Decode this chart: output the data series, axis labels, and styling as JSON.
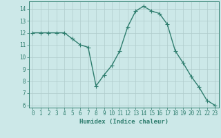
{
  "x": [
    0,
    1,
    2,
    3,
    4,
    5,
    6,
    7,
    8,
    9,
    10,
    11,
    12,
    13,
    14,
    15,
    16,
    17,
    18,
    19,
    20,
    21,
    22,
    23
  ],
  "y": [
    12,
    12,
    12,
    12,
    12,
    11.5,
    11,
    10.8,
    7.6,
    8.5,
    9.3,
    10.5,
    12.5,
    13.8,
    14.2,
    13.8,
    13.6,
    12.7,
    10.5,
    9.5,
    8.4,
    7.5,
    6.4,
    6.0
  ],
  "line_color": "#2e7d6e",
  "marker": "D",
  "marker_size": 2.0,
  "bg_color": "#cce8e8",
  "grid_color": "#b0cccc",
  "xlabel": "Humidex (Indice chaleur)",
  "xlim": [
    -0.5,
    23.5
  ],
  "ylim": [
    5.8,
    14.6
  ],
  "yticks": [
    6,
    7,
    8,
    9,
    10,
    11,
    12,
    13,
    14
  ],
  "xticks": [
    0,
    1,
    2,
    3,
    4,
    5,
    6,
    7,
    8,
    9,
    10,
    11,
    12,
    13,
    14,
    15,
    16,
    17,
    18,
    19,
    20,
    21,
    22,
    23
  ],
  "tick_fontsize": 5.5,
  "xlabel_fontsize": 6.5,
  "axis_color": "#2e7d6e",
  "spine_color": "#2e7d6e",
  "line_width": 1.0
}
